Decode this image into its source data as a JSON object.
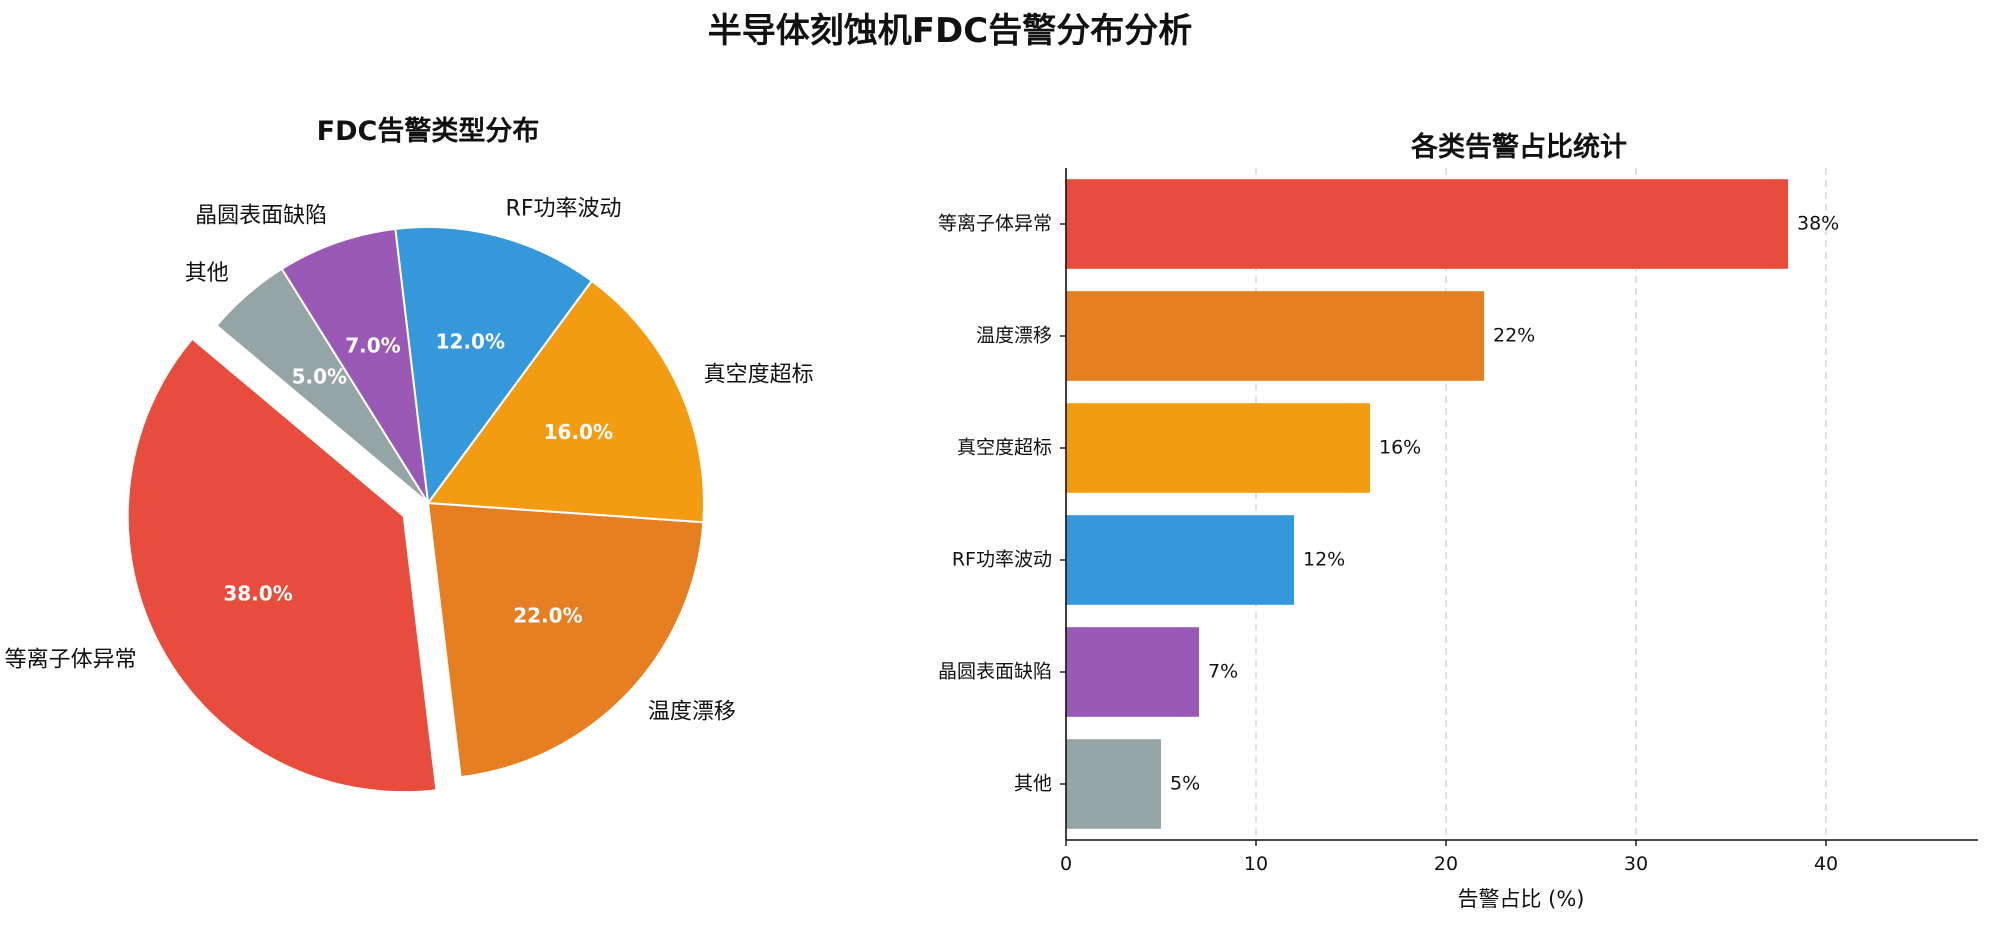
{
  "figure": {
    "title": "半导体刻蚀机FDC告警分布分析"
  },
  "chart_data": [
    {
      "type": "pie",
      "title": "FDC告警类型分布",
      "slices": [
        {
          "label": "等离子体异常",
          "value": 38.0,
          "pct_label": "38.0%",
          "color": "#e74c3c",
          "exploded": true
        },
        {
          "label": "温度漂移",
          "value": 22.0,
          "pct_label": "22.0%",
          "color": "#e67e22",
          "exploded": false
        },
        {
          "label": "真空度超标",
          "value": 16.0,
          "pct_label": "16.0%",
          "color": "#f39c12",
          "exploded": false
        },
        {
          "label": "RF功率波动",
          "value": 12.0,
          "pct_label": "12.0%",
          "color": "#3498db",
          "exploded": false
        },
        {
          "label": "晶圆表面缺陷",
          "value": 7.0,
          "pct_label": "7.0%",
          "color": "#9b59b6",
          "exploded": false
        },
        {
          "label": "其他",
          "value": 5.0,
          "pct_label": "5.0%",
          "color": "#95a5a6",
          "exploded": false
        }
      ]
    },
    {
      "type": "bar",
      "orientation": "horizontal",
      "title": "各类告警占比统计",
      "xlabel": "告警占比 (%)",
      "ylabel": "",
      "xlim": [
        0,
        48
      ],
      "xticks": [
        0,
        10,
        20,
        30,
        40
      ],
      "grid": "x-dashed",
      "categories": [
        "等离子体异常",
        "温度漂移",
        "真空度超标",
        "RF功率波动",
        "晶圆表面缺陷",
        "其他"
      ],
      "values": [
        38,
        22,
        16,
        12,
        7,
        5
      ],
      "value_labels": [
        "38%",
        "22%",
        "16%",
        "12%",
        "7%",
        "5%"
      ],
      "colors": [
        "#e74c3c",
        "#e67e22",
        "#f39c12",
        "#3498db",
        "#9b59b6",
        "#95a5a6"
      ]
    }
  ]
}
